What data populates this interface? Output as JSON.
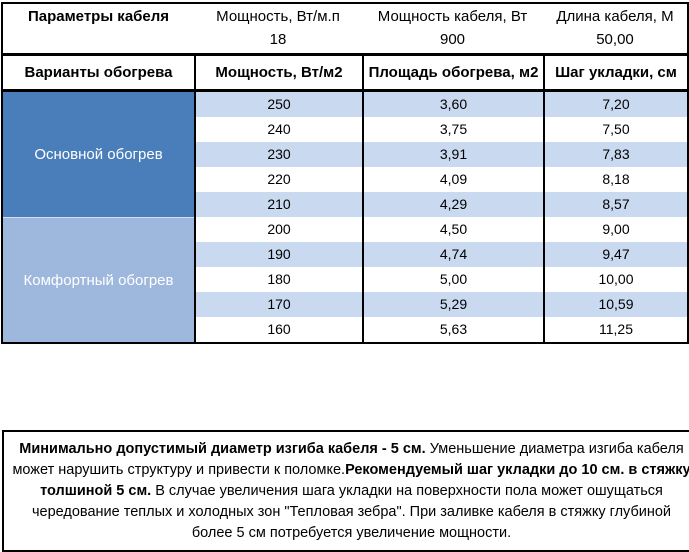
{
  "colors": {
    "group_main_bg": "#4A7EBB",
    "group_comfort_bg": "#9DB8DC",
    "stripe_bg": "#C9D9EF",
    "plain_bg": "#FFFFFF",
    "border": "#000000",
    "group_text": "#FFFFFF"
  },
  "params_header": {
    "title": "Параметры кабеля",
    "columns": [
      {
        "label": "Мощность, Вт/м.п",
        "value": "18"
      },
      {
        "label": "Мощность кабеля, Вт",
        "value": "900"
      },
      {
        "label": "Длина кабеля, М",
        "value": "50,00"
      }
    ]
  },
  "table": {
    "headers": [
      "Варианты обогрева",
      "Мощность, Вт/м2",
      "Площадь обогрева, м2",
      "Шаг укладки, см"
    ],
    "groups": [
      {
        "label": "Основной обогрев",
        "rows": [
          [
            "250",
            "3,60",
            "7,20"
          ],
          [
            "240",
            "3,75",
            "7,50"
          ],
          [
            "230",
            "3,91",
            "7,83"
          ],
          [
            "220",
            "4,09",
            "8,18"
          ],
          [
            "210",
            "4,29",
            "8,57"
          ]
        ]
      },
      {
        "label": "Комфортный обогрев",
        "rows": [
          [
            "200",
            "4,50",
            "9,00"
          ],
          [
            "190",
            "4,74",
            "9,47"
          ],
          [
            "180",
            "5,00",
            "10,00"
          ],
          [
            "170",
            "5,29",
            "10,59"
          ],
          [
            "160",
            "5,63",
            "11,25"
          ]
        ]
      }
    ]
  },
  "note": {
    "segments": [
      {
        "text": "Минимально допустимый диаметр изгиба кабеля - 5 см.",
        "bold": true
      },
      {
        "text": "  Уменьшение диаметра изгиба кабеля может нарушить структуру и привести к поломке.",
        "bold": false
      },
      {
        "text": "Рекомендуемый шаг укладки до 10 см. в стяжку толшиной 5 см.",
        "bold": true
      },
      {
        "text": " В  случае увеличения шага укладки на поверхности пола может ошущаться чередование теплых и холодных зон \"Тепловая зебра\". При заливке кабеля в стяжку глубиной более 5 см потребуется увеличение мощности.",
        "bold": false
      }
    ]
  }
}
